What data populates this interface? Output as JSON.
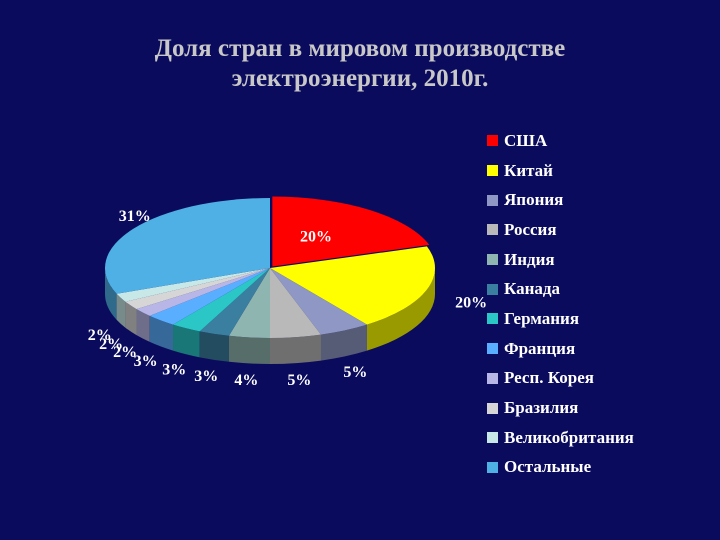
{
  "slide": {
    "title_line1": "Доля стран в мировом производстве",
    "title_line2": "электроэнергии, 2010г."
  },
  "chart_data": {
    "type": "pie",
    "style": "3d-exploded",
    "title": "Доля стран в мировом производстве электроэнергии, 2010г.",
    "legend_position": "right",
    "label_color": "#ffffff",
    "slices": [
      {
        "label": "США",
        "value": 20,
        "display": "20%",
        "color": "#ff0000"
      },
      {
        "label": "Китай",
        "value": 20,
        "display": "20%",
        "color": "#ffff00"
      },
      {
        "label": "Япония",
        "value": 5,
        "display": "5%",
        "color": "#8f98c4"
      },
      {
        "label": "Россия",
        "value": 5,
        "display": "5%",
        "color": "#b9b9b9"
      },
      {
        "label": "Индия",
        "value": 4,
        "display": "4%",
        "color": "#8fb5b0"
      },
      {
        "label": "Канада",
        "value": 3,
        "display": "3%",
        "color": "#3a7fa0"
      },
      {
        "label": "Германия",
        "value": 3,
        "display": "3%",
        "color": "#2bc6c6"
      },
      {
        "label": "Франция",
        "value": 3,
        "display": "3%",
        "color": "#5aaeff"
      },
      {
        "label": "Респ. Корея",
        "value": 2,
        "display": "2%",
        "color": "#b7b6e6"
      },
      {
        "label": "Бразилия",
        "value": 2,
        "display": "2%",
        "color": "#d6d6d6"
      },
      {
        "label": "Великобритания",
        "value": 2,
        "display": "2%",
        "color": "#c7e8e6"
      },
      {
        "label": "Остальные",
        "value": 31,
        "display": "31%",
        "color": "#4fb0e6"
      }
    ]
  }
}
